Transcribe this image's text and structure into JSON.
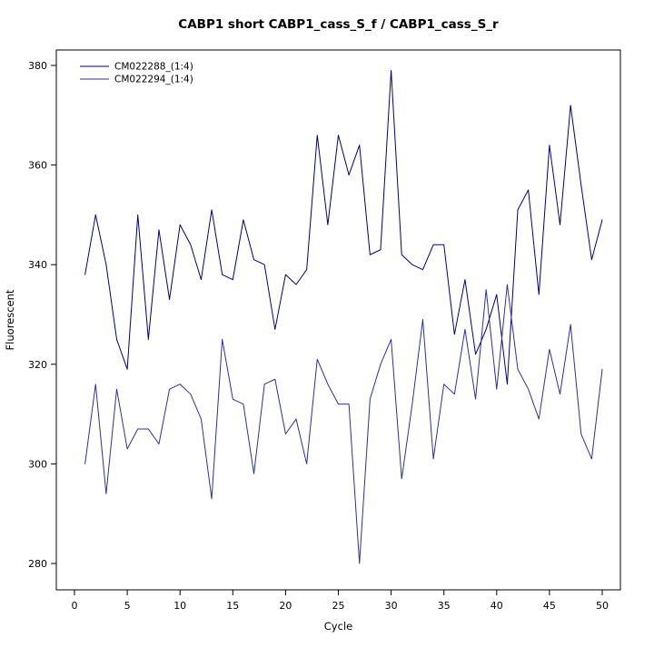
{
  "chart_data": {
    "type": "line",
    "title": "CABP1 short CABP1_cass_S_f / CABP1_cass_S_r",
    "xlabel": "Cycle",
    "ylabel": "Fluorescent",
    "xlim": [
      0,
      50
    ],
    "ylim": [
      280,
      380
    ],
    "x_ticks": [
      0,
      5,
      10,
      15,
      20,
      25,
      30,
      35,
      40,
      45,
      50
    ],
    "y_ticks": [
      280,
      300,
      320,
      340,
      360,
      380
    ],
    "grid": false,
    "legend_position": "top-left",
    "background": "#ffffff",
    "axis_color": "#000000",
    "x": [
      1,
      2,
      3,
      4,
      5,
      6,
      7,
      8,
      9,
      10,
      11,
      12,
      13,
      14,
      15,
      16,
      17,
      18,
      19,
      20,
      21,
      22,
      23,
      24,
      25,
      26,
      27,
      28,
      29,
      30,
      31,
      32,
      33,
      34,
      35,
      36,
      37,
      38,
      39,
      40,
      41,
      42,
      43,
      44,
      45,
      46,
      47,
      48,
      49,
      50
    ],
    "series": [
      {
        "name": "CM022288_(1:4)",
        "color": "#000080",
        "values": [
          338,
          350,
          340,
          325,
          319,
          350,
          325,
          347,
          333,
          348,
          344,
          337,
          351,
          338,
          337,
          349,
          341,
          340,
          327,
          338,
          336,
          339,
          366,
          348,
          366,
          358,
          364,
          342,
          343,
          379,
          342,
          340,
          339,
          344,
          344,
          326,
          337,
          322,
          327,
          334,
          316,
          351,
          355,
          334,
          364,
          348,
          372,
          356,
          341,
          349
        ]
      },
      {
        "name": "CM022294_(1:4)",
        "color": "#2F2F9F",
        "values": [
          300,
          316,
          294,
          315,
          303,
          307,
          307,
          304,
          315,
          316,
          314,
          309,
          293,
          325,
          313,
          312,
          298,
          316,
          317,
          306,
          309,
          300,
          321,
          316,
          312,
          312,
          280,
          313,
          320,
          325,
          297,
          312,
          329,
          301,
          316,
          314,
          327,
          313,
          335,
          315,
          336,
          319,
          315,
          309,
          323,
          314,
          328,
          306,
          301,
          319
        ]
      }
    ]
  }
}
